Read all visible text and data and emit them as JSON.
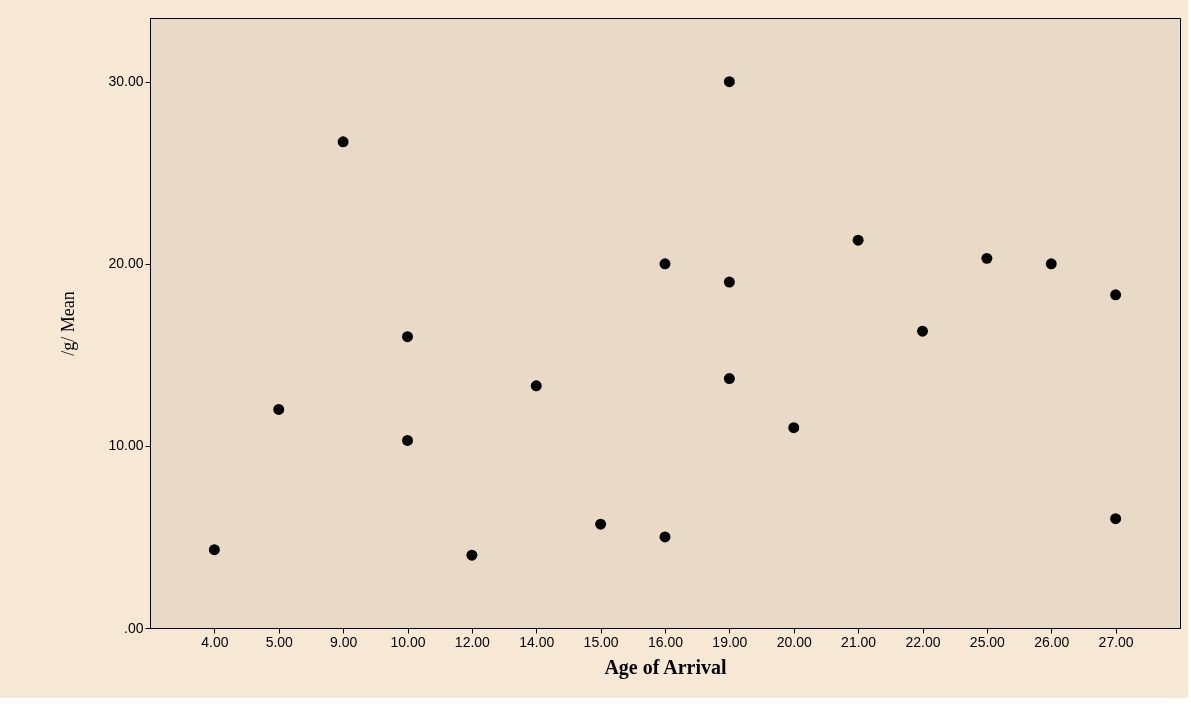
{
  "chart_data": {
    "type": "scatter",
    "xlabel": "Age of Arrival",
    "ylabel": "/g/ Mean",
    "categories": [
      "4.00",
      "5.00",
      "9.00",
      "10.00",
      "12.00",
      "14.00",
      "15.00",
      "16.00",
      "19.00",
      "20.00",
      "21.00",
      "22.00",
      "25.00",
      "26.00",
      "27.00"
    ],
    "series": [
      {
        "color": "#000000",
        "x": [
          "4.00",
          "5.00",
          "9.00",
          "10.00",
          "10.00",
          "12.00",
          "14.00",
          "15.00",
          "16.00",
          "16.00",
          "19.00",
          "19.00",
          "19.00",
          "20.00",
          "21.00",
          "22.00",
          "25.00",
          "26.00",
          "27.00",
          "27.00"
        ],
        "values": [
          4.3,
          12.0,
          26.7,
          16.0,
          10.3,
          4.0,
          13.3,
          5.7,
          20.0,
          5.0,
          30.0,
          19.0,
          13.7,
          11.0,
          21.3,
          16.3,
          20.3,
          20.0,
          18.3,
          6.0
        ]
      }
    ],
    "ylim": [
      0,
      33.5
    ],
    "yticks": [
      {
        "value": 0,
        "label": ".00"
      },
      {
        "value": 10,
        "label": "10.00"
      },
      {
        "value": 20,
        "label": "20.00"
      },
      {
        "value": 30,
        "label": "30.00"
      }
    ],
    "marker": "circle",
    "grid": false
  }
}
